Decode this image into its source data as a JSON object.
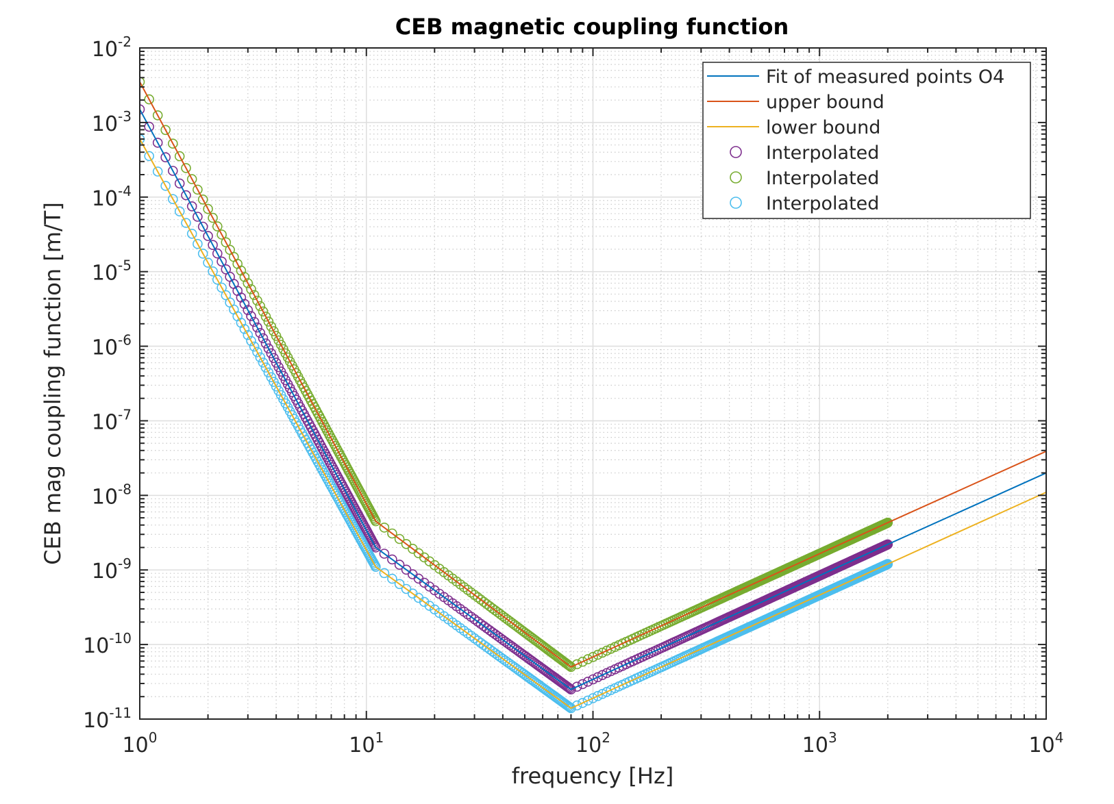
{
  "chart_data": {
    "type": "line",
    "title": "CEB magnetic coupling function",
    "xlabel": "frequency [Hz]",
    "ylabel": "CEB mag coupling function [m/T]",
    "xscale": "log",
    "yscale": "log",
    "xlim": [
      1,
      10000
    ],
    "ylim": [
      1e-11,
      0.01
    ],
    "grid": "major and minor",
    "legend_position": "top-right",
    "x_ticks": [
      {
        "base": "10",
        "exp": "0",
        "value": 1
      },
      {
        "base": "10",
        "exp": "1",
        "value": 10
      },
      {
        "base": "10",
        "exp": "2",
        "value": 100
      },
      {
        "base": "10",
        "exp": "3",
        "value": 1000
      },
      {
        "base": "10",
        "exp": "4",
        "value": 10000
      }
    ],
    "y_ticks": [
      {
        "base": "10",
        "exp": "-2",
        "value": 0.01
      },
      {
        "base": "10",
        "exp": "-3",
        "value": 0.001
      },
      {
        "base": "10",
        "exp": "-4",
        "value": 0.0001
      },
      {
        "base": "10",
        "exp": "-5",
        "value": 1e-05
      },
      {
        "base": "10",
        "exp": "-6",
        "value": 1e-06
      },
      {
        "base": "10",
        "exp": "-7",
        "value": 1e-07
      },
      {
        "base": "10",
        "exp": "-8",
        "value": 1e-08
      },
      {
        "base": "10",
        "exp": "-9",
        "value": 1e-09
      },
      {
        "base": "10",
        "exp": "-10",
        "value": 1e-10
      },
      {
        "base": "10",
        "exp": "-11",
        "value": 1e-11
      }
    ],
    "series": [
      {
        "name": "Fit of measured points O4",
        "kind": "line",
        "color": "#0072BD",
        "x": [
          1,
          11,
          80,
          2000,
          10000
        ],
        "y": [
          0.0015,
          2e-09,
          2.5e-11,
          2.2e-09,
          2e-08
        ]
      },
      {
        "name": "upper bound",
        "kind": "line",
        "color": "#D95319",
        "x": [
          1,
          11,
          80,
          2000,
          10000
        ],
        "y": [
          0.0035,
          4.5e-09,
          5e-11,
          4.3e-09,
          3.9e-08
        ]
      },
      {
        "name": "lower bound",
        "kind": "line",
        "color": "#EDB120",
        "x": [
          1,
          11,
          80,
          2000,
          10000
        ],
        "y": [
          0.0006,
          1.1e-09,
          1.4e-11,
          1.2e-09,
          1.1e-08
        ]
      },
      {
        "name": "Interpolated",
        "kind": "markers",
        "marker": "circle",
        "color": "#7E2F8E",
        "follows": 0,
        "x_range": [
          1,
          2000
        ]
      },
      {
        "name": "Interpolated",
        "kind": "markers",
        "marker": "circle",
        "color": "#77AC30",
        "follows": 1,
        "x_range": [
          1,
          2000
        ]
      },
      {
        "name": "Interpolated",
        "kind": "markers",
        "marker": "circle",
        "color": "#4DBEEE",
        "follows": 2,
        "x_range": [
          1,
          2000
        ]
      }
    ],
    "marker_frequency_steps": [
      {
        "from": 1,
        "to": 11,
        "step": 0.1
      },
      {
        "from": 11,
        "to": 80,
        "step": 1
      },
      {
        "from": 80,
        "to": 2000,
        "step": 5
      }
    ]
  }
}
